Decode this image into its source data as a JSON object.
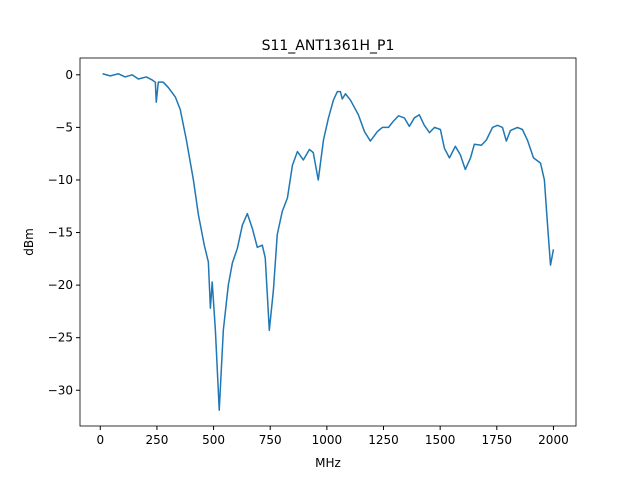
{
  "chart_data": {
    "type": "line",
    "title": "S11_ANT1361H_P1",
    "x_label": "MHz",
    "y_label": "dBm",
    "color": "#1f77b4",
    "x": [
      10,
      44,
      80,
      110,
      141,
      168,
      203,
      230,
      243,
      247,
      256,
      278,
      300,
      331,
      353,
      380,
      411,
      433,
      459,
      477,
      486,
      494,
      508,
      525,
      543,
      565,
      583,
      605,
      627,
      649,
      671,
      693,
      715,
      728,
      746,
      764,
      781,
      803,
      826,
      848,
      870,
      896,
      923,
      940,
      962,
      985,
      1007,
      1029,
      1046,
      1060,
      1068,
      1082,
      1104,
      1139,
      1166,
      1192,
      1223,
      1245,
      1272,
      1294,
      1316,
      1342,
      1364,
      1386,
      1408,
      1430,
      1453,
      1475,
      1501,
      1519,
      1541,
      1567,
      1589,
      1611,
      1634,
      1651,
      1682,
      1704,
      1731,
      1753,
      1775,
      1792,
      1810,
      1841,
      1863,
      1885,
      1912,
      1943,
      1960,
      1974,
      1987,
      2000
    ],
    "values": [
      0.1,
      -0.1,
      0.1,
      -0.2,
      0,
      -0.4,
      -0.2,
      -0.5,
      -0.7,
      -2.6,
      -0.7,
      -0.7,
      -1.2,
      -2.1,
      -3.3,
      -6.2,
      -10,
      -13.3,
      -16.2,
      -17.8,
      -22.2,
      -19.7,
      -24.3,
      -31.9,
      -24.3,
      -20,
      -17.9,
      -16.5,
      -14.3,
      -13.2,
      -14.6,
      -16.4,
      -16.2,
      -17.4,
      -24.3,
      -20.5,
      -15.2,
      -13,
      -11.7,
      -8.6,
      -7.3,
      -8.1,
      -7.1,
      -7.4,
      -10,
      -6.2,
      -4.1,
      -2.4,
      -1.6,
      -1.6,
      -2.3,
      -1.8,
      -2.4,
      -3.8,
      -5.4,
      -6.3,
      -5.4,
      -5,
      -5,
      -4.4,
      -3.9,
      -4.1,
      -4.9,
      -4.1,
      -3.8,
      -4.8,
      -5.5,
      -5,
      -5.2,
      -7,
      -7.9,
      -6.8,
      -7.6,
      -9,
      -7.9,
      -6.6,
      -6.7,
      -6.2,
      -5,
      -4.8,
      -5,
      -6.3,
      -5.3,
      -5,
      -5.2,
      -6.2,
      -7.9,
      -8.4,
      -10,
      -14.3,
      -18.1,
      -16.6
    ],
    "xlim": [
      -89.5,
      2099.5
    ],
    "ylim": [
      -33.4,
      1.6
    ],
    "xticks": [
      0,
      250,
      500,
      750,
      1000,
      1250,
      1500,
      1750,
      2000
    ],
    "yticks": [
      0,
      {
        "value": -5,
        "label": "−5"
      },
      {
        "value": -10,
        "label": "−10"
      },
      {
        "value": -15,
        "label": "−15"
      },
      {
        "value": -20,
        "label": "−20"
      },
      {
        "value": -25,
        "label": "−25"
      },
      {
        "value": -30,
        "label": "−30"
      }
    ]
  }
}
